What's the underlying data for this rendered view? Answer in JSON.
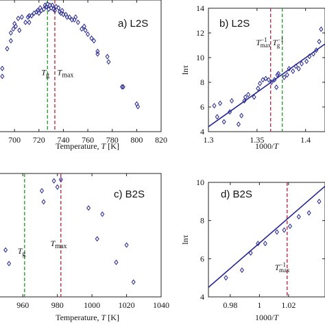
{
  "chart_data": [
    {
      "id": "a",
      "type": "scatter",
      "panel_label": "a) L2S",
      "xlabel": "Temperature, T [K]",
      "ylabel": "",
      "xlim": [
        687,
        820
      ],
      "ylim": [
        0,
        1
      ],
      "x_ticks": [
        700,
        720,
        740,
        760,
        780,
        800,
        820
      ],
      "y_ticks": [],
      "vlines": [
        {
          "x": 727,
          "color": "#2ea02e"
        },
        {
          "x": 733,
          "color": "#b0304a"
        }
      ],
      "annotations": [
        {
          "text": "Tg",
          "x": 722,
          "y": 0.43
        },
        {
          "text": "Tmax",
          "x": 735,
          "y": 0.43
        }
      ],
      "series": [
        {
          "points": [
            [
              690,
              0.48
            ],
            [
              690,
              0.42
            ],
            [
              694,
              0.63
            ],
            [
              697,
              0.69
            ],
            [
              697,
              0.75
            ],
            [
              699,
              0.78
            ],
            [
              700,
              0.82
            ],
            [
              701,
              0.8
            ],
            [
              703,
              0.86
            ],
            [
              704,
              0.77
            ],
            [
              706,
              0.87
            ],
            [
              709,
              0.83
            ],
            [
              711,
              0.87
            ],
            [
              712,
              0.88
            ],
            [
              712,
              0.83
            ],
            [
              714,
              0.88
            ],
            [
              716,
              0.9
            ],
            [
              718,
              0.91
            ],
            [
              719,
              0.92
            ],
            [
              720,
              0.9
            ],
            [
              721,
              0.94
            ],
            [
              722,
              0.92
            ],
            [
              724,
              0.93
            ],
            [
              725,
              0.96
            ],
            [
              726,
              0.95
            ],
            [
              727,
              0.97
            ],
            [
              728,
              0.93
            ],
            [
              729,
              0.96
            ],
            [
              730,
              0.94
            ],
            [
              731,
              0.96
            ],
            [
              732,
              0.93
            ],
            [
              733,
              0.92
            ],
            [
              734,
              0.95
            ],
            [
              736,
              0.94
            ],
            [
              737,
              0.91
            ],
            [
              738,
              0.9
            ],
            [
              739,
              0.92
            ],
            [
              740,
              0.89
            ],
            [
              742,
              0.89
            ],
            [
              743,
              0.87
            ],
            [
              745,
              0.87
            ],
            [
              747,
              0.85
            ],
            [
              749,
              0.85
            ],
            [
              750,
              0.87
            ],
            [
              752,
              0.83
            ],
            [
              755,
              0.78
            ],
            [
              757,
              0.8
            ],
            [
              758,
              0.77
            ],
            [
              760,
              0.74
            ],
            [
              763,
              0.71
            ],
            [
              765,
              0.69
            ],
            [
              768,
              0.61
            ],
            [
              768,
              0.59
            ],
            [
              776,
              0.57
            ],
            [
              777,
              0.53
            ],
            [
              788,
              0.34
            ],
            [
              789,
              0.34
            ],
            [
              800,
              0.21
            ],
            [
              801,
              0.19
            ]
          ]
        }
      ]
    },
    {
      "id": "b",
      "type": "scatter",
      "panel_label": "b) L2S",
      "xlabel": "1000/T",
      "ylabel": "lnτ",
      "xlim": [
        1.3,
        1.42
      ],
      "ylim": [
        4,
        14
      ],
      "x_ticks": [
        1.3,
        1.35,
        1.4
      ],
      "x_tick_labels": [
        "1.3",
        "1.35",
        "1.4"
      ],
      "y_ticks": [
        4,
        6,
        8,
        10,
        12,
        14
      ],
      "vlines": [
        {
          "x": 1.364,
          "color": "#b0304a"
        },
        {
          "x": 1.376,
          "color": "#2ea02e"
        }
      ],
      "annotations": [
        {
          "text": "Tmax⁻¹",
          "x": 1.349,
          "y": 11.0
        },
        {
          "text": "Tg⁻¹",
          "x": 1.366,
          "y": 11.0
        }
      ],
      "fit_line": [
        [
          1.3,
          4.4
        ],
        [
          1.42,
          11.1
        ]
      ],
      "series": [
        {
          "points": [
            [
              1.306,
              6.1
            ],
            [
              1.309,
              5.2
            ],
            [
              1.312,
              6.3
            ],
            [
              1.316,
              4.8
            ],
            [
              1.322,
              5.6
            ],
            [
              1.324,
              6.5
            ],
            [
              1.331,
              4.6
            ],
            [
              1.334,
              5.3
            ],
            [
              1.337,
              6.5
            ],
            [
              1.338,
              6.8
            ],
            [
              1.341,
              7.0
            ],
            [
              1.347,
              6.8
            ],
            [
              1.351,
              7.5
            ],
            [
              1.353,
              7.9
            ],
            [
              1.356,
              8.2
            ],
            [
              1.359,
              8.3
            ],
            [
              1.362,
              8.2
            ],
            [
              1.365,
              8.0
            ],
            [
              1.368,
              8.2
            ],
            [
              1.37,
              7.6
            ],
            [
              1.371,
              8.6
            ],
            [
              1.372,
              8.7
            ],
            [
              1.378,
              8.4
            ],
            [
              1.381,
              8.6
            ],
            [
              1.383,
              9.1
            ],
            [
              1.387,
              8.9
            ],
            [
              1.39,
              9.3
            ],
            [
              1.393,
              9.1
            ],
            [
              1.396,
              9.5
            ],
            [
              1.401,
              9.7
            ],
            [
              1.404,
              10.1
            ],
            [
              1.408,
              10.3
            ],
            [
              1.411,
              10.6
            ],
            [
              1.414,
              11.3
            ],
            [
              1.416,
              12.3
            ]
          ]
        }
      ]
    },
    {
      "id": "c",
      "type": "scatter",
      "panel_label": "c) B2S",
      "xlabel": "Temperature, T [K]",
      "ylabel": "",
      "xlim": [
        946,
        1040
      ],
      "ylim": [
        0,
        1
      ],
      "x_ticks": [
        960,
        980,
        1000,
        1020,
        1040
      ],
      "y_ticks": [],
      "vlines": [
        {
          "x": 961,
          "color": "#2ea02e"
        },
        {
          "x": 982,
          "color": "#b0304a"
        }
      ],
      "annotations": [
        {
          "text": "Tg",
          "x": 957,
          "y": 0.35
        },
        {
          "text": "Tmax",
          "x": 976,
          "y": 0.41
        }
      ],
      "series": [
        {
          "points": [
            [
              950,
              0.38
            ],
            [
              952,
              0.27
            ],
            [
              971,
              0.86
            ],
            [
              972,
              0.77
            ],
            [
              978,
              0.94
            ],
            [
              980,
              0.89
            ],
            [
              982,
              0.95
            ],
            [
              998,
              0.72
            ],
            [
              1003,
              0.47
            ],
            [
              1006,
              0.67
            ],
            [
              1014,
              0.28
            ],
            [
              1020,
              0.42
            ],
            [
              1024,
              0.12
            ]
          ]
        }
      ]
    },
    {
      "id": "d",
      "type": "scatter",
      "panel_label": "d) B2S",
      "xlabel": "1000/T",
      "ylabel": "lnτ",
      "xlim": [
        0.965,
        1.045
      ],
      "ylim": [
        4,
        10
      ],
      "x_ticks": [
        0.98,
        1.0,
        1.02
      ],
      "x_tick_labels": [
        "0.98",
        "1",
        "1.02"
      ],
      "y_ticks": [
        4,
        6,
        8,
        10
      ],
      "vlines": [
        {
          "x": 1.019,
          "color": "#b0304a"
        }
      ],
      "annotations": [
        {
          "text": "Tmax⁻¹",
          "x": 1.0105,
          "y": 5.4
        }
      ],
      "fit_line": [
        [
          0.965,
          4.5
        ],
        [
          1.045,
          9.8
        ]
      ],
      "series": [
        {
          "points": [
            [
              0.977,
              5.0
            ],
            [
              0.988,
              5.4
            ],
            [
              0.994,
              6.3
            ],
            [
              0.999,
              6.8
            ],
            [
              1.004,
              6.8
            ],
            [
              1.012,
              7.4
            ],
            [
              1.017,
              7.5
            ],
            [
              1.021,
              7.7
            ],
            [
              1.027,
              8.2
            ],
            [
              1.034,
              8.4
            ],
            [
              1.041,
              9.0
            ]
          ]
        }
      ]
    }
  ]
}
